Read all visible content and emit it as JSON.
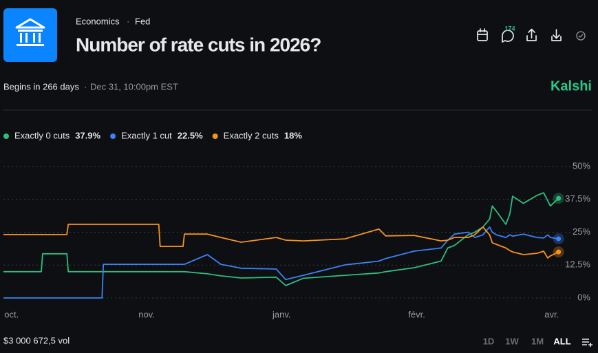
{
  "header": {
    "category": "Economics",
    "subcategory": "Fed",
    "title": "Number of rate cuts in 2026?",
    "comments": "174",
    "begins": "Begins in 266 days",
    "date": "Dec 31, 10:00pm EST",
    "brand": "Kalshi"
  },
  "chart_data": {
    "type": "line",
    "x": [
      -0.06,
      0.22,
      0.23,
      0.41,
      0.42,
      0.67,
      0.68,
      1.09,
      1.1,
      1.27,
      1.28,
      1.45,
      1.55,
      1.7,
      1.96,
      2.03,
      2.16,
      2.47,
      2.72,
      2.77,
      2.98,
      3.18,
      3.23,
      3.28,
      3.38,
      3.43,
      3.49,
      3.54,
      3.56,
      3.59,
      3.66,
      3.69,
      3.71,
      3.79,
      3.89,
      3.94,
      3.97,
      3.99,
      4.05
    ],
    "xlim": [
      -0.06,
      4.05
    ],
    "xticks": [
      {
        "value": 0,
        "label": "oct."
      },
      {
        "value": 1,
        "label": "nov."
      },
      {
        "value": 2,
        "label": "janv."
      },
      {
        "value": 3,
        "label": "févr."
      },
      {
        "value": 4,
        "label": "avr."
      }
    ],
    "ylim": [
      0,
      50
    ],
    "yticks": [
      {
        "value": 0,
        "label": "0%"
      },
      {
        "value": 12.5,
        "label": "12.5%"
      },
      {
        "value": 25,
        "label": "25%"
      },
      {
        "value": 37.5,
        "label": "37.5%"
      },
      {
        "value": 50,
        "label": "50%"
      }
    ],
    "grid": true,
    "series": [
      {
        "name": "Exactly 0 cuts",
        "chance": "37.9%",
        "color": "#2ebd7f",
        "values": [
          10,
          10,
          16.8,
          16.8,
          10,
          10,
          10,
          10,
          10,
          10,
          10,
          9.2,
          8.4,
          7.6,
          7.9,
          4.7,
          7.5,
          8.6,
          9.5,
          10,
          11.5,
          14,
          19,
          20,
          24,
          25,
          27,
          30,
          35,
          33,
          28,
          32,
          38.7,
          36,
          39,
          40,
          37,
          35,
          37.9
        ]
      },
      {
        "name": "Exactly 1 cut",
        "chance": "22.5%",
        "color": "#3b82f6",
        "values": [
          0,
          0,
          0,
          0,
          0,
          0,
          12.8,
          12.8,
          12.8,
          12.8,
          12.8,
          16.5,
          12.8,
          11.3,
          11,
          7,
          8.6,
          12.6,
          14,
          15,
          17.8,
          19,
          22,
          24.3,
          25,
          23,
          24,
          27,
          25,
          24,
          23,
          24,
          23.5,
          24.3,
          23,
          22.8,
          24,
          23,
          22.5
        ]
      },
      {
        "name": "Exactly 2 cuts",
        "chance": "18%",
        "color": "#f7931a",
        "values": [
          24.1,
          24.1,
          24.1,
          24.1,
          28,
          28,
          28,
          28,
          19.6,
          19.6,
          24.3,
          24.3,
          23,
          21.2,
          23,
          22,
          21.7,
          22.5,
          26.2,
          23.6,
          23.8,
          21.7,
          22,
          23,
          23,
          24,
          27,
          24,
          21,
          20.4,
          19,
          18,
          17.5,
          16.5,
          17,
          17.8,
          15.2,
          16,
          17.5
        ]
      }
    ]
  },
  "footer": {
    "volume": "$3 000 672,5 vol",
    "ranges": [
      "1D",
      "1W",
      "1M",
      "ALL"
    ]
  }
}
